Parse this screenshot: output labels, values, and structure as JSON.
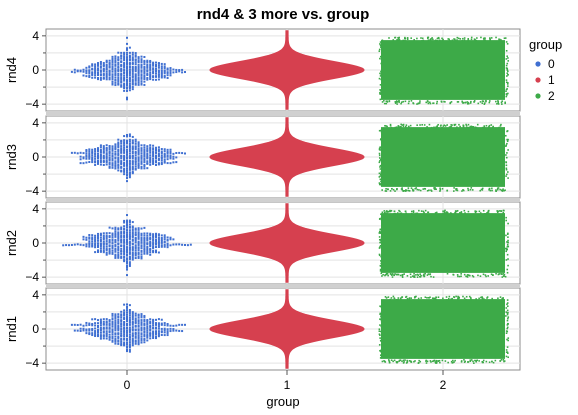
{
  "chart_data": {
    "type": "scatter",
    "title": "rnd4 & 3 more vs. group",
    "xlabel": "group",
    "x_categories": [
      "0",
      "1",
      "2"
    ],
    "y_ticks": [
      -4,
      0,
      4
    ],
    "ylim": [
      -4.8,
      4.8
    ],
    "grid": true,
    "legend_title": "group",
    "legend_position": "right",
    "series": [
      {
        "name": "0",
        "color": "#3f6fd1",
        "style": "beeswarm",
        "n_points": 400,
        "distribution": "normal",
        "mean": 0,
        "sd": 1
      },
      {
        "name": "1",
        "color": "#d6404f",
        "style": "dense-violin",
        "n_points": 100000,
        "distribution": "normal",
        "mean": 0,
        "sd": 1
      },
      {
        "name": "2",
        "color": "#3daa48",
        "style": "jitter-uniform",
        "n_points": 100000,
        "distribution": "uniform",
        "ymin": -3.5,
        "ymax": 3.5
      }
    ],
    "panels": [
      {
        "ylabel": "rnd4"
      },
      {
        "ylabel": "rnd3"
      },
      {
        "ylabel": "rnd2"
      },
      {
        "ylabel": "rnd1"
      }
    ]
  }
}
